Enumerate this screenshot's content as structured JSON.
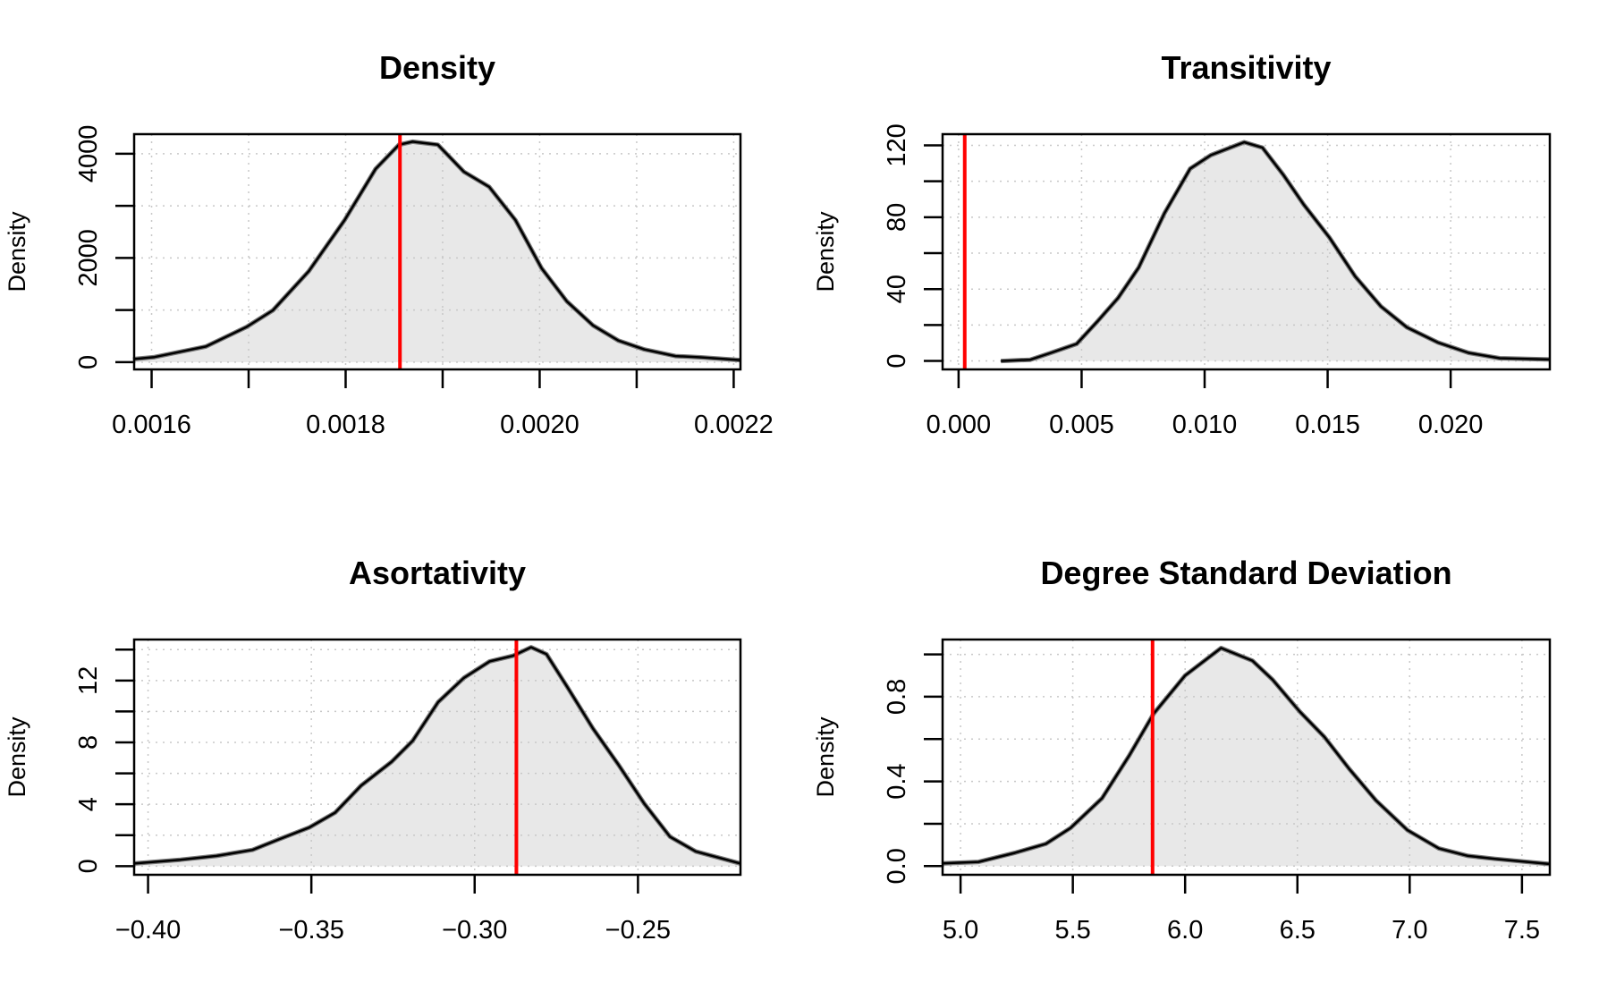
{
  "chart_data": [
    {
      "type": "area",
      "title": "Density",
      "xlabel": "",
      "ylabel": "Density",
      "xlim": [
        0.001582,
        0.002207
      ],
      "ylim": [
        -139,
        4376
      ],
      "grid": true,
      "fill_color": "#e8e8e8",
      "line_color": "#000000",
      "reference_line": {
        "x": 0.001856,
        "color": "#ff0000"
      },
      "x_ticks": [
        0.0016,
        0.0017,
        0.0018,
        0.0019,
        0.002,
        0.0021,
        0.0022
      ],
      "x_tick_labels": [
        {
          "value": 0.0016,
          "label": "0.0016"
        },
        {
          "value": 0.0018,
          "label": "0.0018"
        },
        {
          "value": 0.002,
          "label": "0.0020"
        },
        {
          "value": 0.0022,
          "label": "0.0022"
        }
      ],
      "y_ticks": [
        0,
        1000,
        2000,
        3000,
        4000
      ],
      "y_tick_labels": [
        {
          "value": 0,
          "label": "0"
        },
        {
          "value": 2000,
          "label": "2000"
        },
        {
          "value": 4000,
          "label": "4000"
        }
      ],
      "x": [
        0.001581,
        0.001603,
        0.001656,
        0.001698,
        0.001725,
        0.001762,
        0.001799,
        0.001831,
        0.001855,
        0.001869,
        0.001895,
        0.001922,
        0.001948,
        0.001975,
        0.002002,
        0.002028,
        0.002055,
        0.002081,
        0.002108,
        0.00214,
        0.002166,
        0.002207
      ],
      "y": [
        58,
        98,
        300,
        676,
        994,
        1746,
        2728,
        3711,
        4173,
        4231,
        4173,
        3653,
        3364,
        2728,
        1803,
        1168,
        705,
        416,
        243,
        116,
        92,
        40
      ]
    },
    {
      "type": "area",
      "title": "Transitivity",
      "xlabel": "",
      "ylabel": "Density",
      "xlim": [
        -0.00065,
        0.02403
      ],
      "ylim": [
        -4.7,
        126.2
      ],
      "grid": true,
      "fill_color": "#e8e8e8",
      "line_color": "#000000",
      "reference_line": {
        "x": 0.00025,
        "color": "#ff0000"
      },
      "x_ticks": [
        0,
        0.005,
        0.01,
        0.015,
        0.02
      ],
      "x_tick_labels": [
        {
          "value": 0,
          "label": "0.000"
        },
        {
          "value": 0.005,
          "label": "0.005"
        },
        {
          "value": 0.01,
          "label": "0.010"
        },
        {
          "value": 0.015,
          "label": "0.015"
        },
        {
          "value": 0.02,
          "label": "0.020"
        }
      ],
      "y_ticks": [
        0,
        20,
        40,
        60,
        80,
        100,
        120
      ],
      "y_tick_labels": [
        {
          "value": 0,
          "label": "0"
        },
        {
          "value": 40,
          "label": "40"
        },
        {
          "value": 80,
          "label": "80"
        },
        {
          "value": 120,
          "label": "120"
        }
      ],
      "x": [
        0.00172,
        0.00291,
        0.00375,
        0.0048,
        0.00564,
        0.00648,
        0.00732,
        0.00836,
        0.00941,
        0.01025,
        0.01161,
        0.01235,
        0.01319,
        0.01403,
        0.01507,
        0.01612,
        0.01717,
        0.01822,
        0.01948,
        0.02073,
        0.02199,
        0.02403
      ],
      "y": [
        0,
        0.7,
        4.5,
        9.5,
        22,
        35,
        52,
        82,
        107,
        114.5,
        121.7,
        118.7,
        103.7,
        87,
        68.7,
        47,
        30.3,
        18.7,
        10.3,
        4.5,
        1.5,
        0.8
      ]
    },
    {
      "type": "area",
      "title": "Asortativity",
      "xlabel": "",
      "ylabel": "Density",
      "xlim": [
        -0.40426,
        -0.21861
      ],
      "ylim": [
        -0.56,
        14.65
      ],
      "grid": true,
      "fill_color": "#e8e8e8",
      "line_color": "#000000",
      "reference_line": {
        "x": -0.28722,
        "color": "#ff0000"
      },
      "x_ticks": [
        -0.4,
        -0.35,
        -0.3,
        -0.25
      ],
      "x_tick_labels": [
        {
          "value": -0.4,
          "label": "−0.40"
        },
        {
          "value": -0.35,
          "label": "−0.35"
        },
        {
          "value": -0.3,
          "label": "−0.30"
        },
        {
          "value": -0.25,
          "label": "−0.25"
        }
      ],
      "y_ticks": [
        0,
        2,
        4,
        6,
        8,
        10,
        12,
        14
      ],
      "y_tick_labels": [
        {
          "value": 0,
          "label": "0"
        },
        {
          "value": 4,
          "label": "4"
        },
        {
          "value": 8,
          "label": "8"
        },
        {
          "value": 12,
          "label": "12"
        }
      ],
      "x": [
        -0.4043,
        -0.3901,
        -0.379,
        -0.368,
        -0.3601,
        -0.3506,
        -0.3427,
        -0.3348,
        -0.3254,
        -0.319,
        -0.3112,
        -0.3033,
        -0.2954,
        -0.2883,
        -0.2827,
        -0.278,
        -0.2717,
        -0.2638,
        -0.256,
        -0.2481,
        -0.2402,
        -0.2323,
        -0.2186
      ],
      "y": [
        0.17,
        0.41,
        0.66,
        1.05,
        1.72,
        2.5,
        3.46,
        5.2,
        6.75,
        8.1,
        10.6,
        12.17,
        13.24,
        13.6,
        14.15,
        13.7,
        11.6,
        8.9,
        6.56,
        4.05,
        1.9,
        0.95,
        0.17
      ]
    },
    {
      "type": "area",
      "title": "Degree Standard Deviation",
      "xlabel": "",
      "ylabel": "Density",
      "xlim": [
        4.92,
        7.624
      ],
      "ylim": [
        -0.041,
        1.07
      ],
      "grid": true,
      "fill_color": "#e8e8e8",
      "line_color": "#000000",
      "reference_line": {
        "x": 5.855,
        "color": "#ff0000"
      },
      "x_ticks": [
        5.0,
        5.5,
        6.0,
        6.5,
        7.0,
        7.5
      ],
      "x_tick_labels": [
        {
          "value": 5.0,
          "label": "5.0"
        },
        {
          "value": 5.5,
          "label": "5.5"
        },
        {
          "value": 6.0,
          "label": "6.0"
        },
        {
          "value": 6.5,
          "label": "6.5"
        },
        {
          "value": 7.0,
          "label": "7.0"
        },
        {
          "value": 7.5,
          "label": "7.5"
        }
      ],
      "y_ticks": [
        0,
        0.2,
        0.4,
        0.6,
        0.8,
        1.0
      ],
      "y_tick_labels": [
        {
          "value": 0,
          "label": "0.0"
        },
        {
          "value": 0.4,
          "label": "0.4"
        },
        {
          "value": 0.8,
          "label": "0.8"
        }
      ],
      "x": [
        4.92,
        5.08,
        5.24,
        5.38,
        5.49,
        5.63,
        5.75,
        5.86,
        6.0,
        6.16,
        6.3,
        6.39,
        6.51,
        6.62,
        6.73,
        6.85,
        6.99,
        7.13,
        7.26,
        7.38,
        7.62
      ],
      "y": [
        0.013,
        0.02,
        0.062,
        0.105,
        0.18,
        0.32,
        0.52,
        0.72,
        0.9,
        1.03,
        0.97,
        0.88,
        0.73,
        0.61,
        0.46,
        0.31,
        0.17,
        0.083,
        0.048,
        0.034,
        0.01
      ]
    }
  ]
}
